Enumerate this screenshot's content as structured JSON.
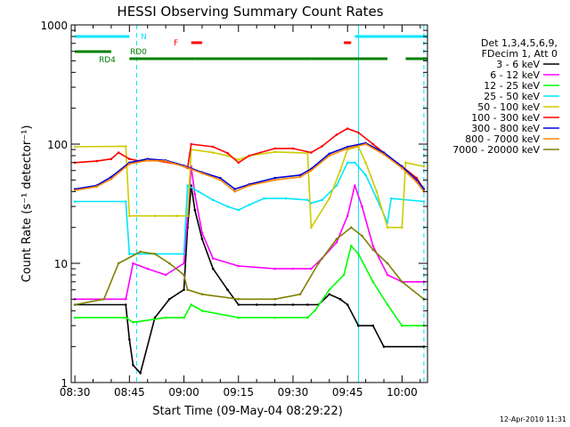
{
  "chart_data": {
    "type": "line",
    "title": "HESSI Observing Summary Count Rates",
    "xlabel": "Start Time (09-May-04 08:29:22)",
    "ylabel": "Count Rate (s⁻¹ detector⁻¹)",
    "y_scale": "log",
    "ylim": [
      1,
      1000
    ],
    "xlim": [
      "08:29",
      "10:07"
    ],
    "x_ticks": [
      "08:30",
      "08:45",
      "09:00",
      "09:15",
      "09:30",
      "09:45",
      "10:00"
    ],
    "y_ticks": [
      1,
      10,
      100,
      1000
    ],
    "y_tick_labels": [
      "1",
      "10",
      "100",
      "1000"
    ],
    "legend_header": [
      "Det 1,3,4,5,6,9,",
      "FDecim 1, Att 0"
    ],
    "legend_position": "right",
    "timestamp": "12-Apr-2010 11:31",
    "flag_bars": [
      {
        "label": "N",
        "color": "#00e5ff",
        "segments": [
          [
            "08:30",
            "08:45"
          ],
          [
            "09:47",
            "10:07"
          ]
        ]
      },
      {
        "label": "F",
        "color": "#ff0000",
        "segments": [
          [
            "09:02",
            "09:05"
          ],
          [
            "09:44",
            "09:46"
          ]
        ]
      },
      {
        "label": "RD0",
        "color": "#008000",
        "segments": [
          [
            "08:30",
            "08:40"
          ]
        ]
      },
      {
        "label": "RD4",
        "color": "#008000",
        "segments": [
          [
            "08:45",
            "09:03"
          ],
          [
            "09:03",
            "09:35"
          ],
          [
            "09:35",
            "09:56"
          ],
          [
            "10:01",
            "10:07"
          ]
        ]
      }
    ],
    "vertical_lines": [
      {
        "time": "08:47",
        "style": "dashed",
        "color": "#00e5ff"
      },
      {
        "time": "09:48",
        "style": "solid",
        "color": "#00e5ff"
      },
      {
        "time": "10:06",
        "style": "dashed",
        "color": "#00e5ff"
      }
    ],
    "series": [
      {
        "name": "3 - 6 keV",
        "color": "#000000",
        "points": [
          [
            "08:30",
            4.5
          ],
          [
            "08:44",
            4.5
          ],
          [
            "08:45",
            2.3
          ],
          [
            "08:46",
            1.4
          ],
          [
            "08:48",
            1.2
          ],
          [
            "08:52",
            3.5
          ],
          [
            "08:56",
            5
          ],
          [
            "09:00",
            6
          ],
          [
            "09:01",
            20
          ],
          [
            "09:02",
            45
          ],
          [
            "09:03",
            28
          ],
          [
            "09:05",
            16
          ],
          [
            "09:08",
            9
          ],
          [
            "09:12",
            6
          ],
          [
            "09:15",
            4.5
          ],
          [
            "09:20",
            4.5
          ],
          [
            "09:25",
            4.5
          ],
          [
            "09:30",
            4.5
          ],
          [
            "09:34",
            4.5
          ],
          [
            "09:37",
            4.5
          ],
          [
            "09:40",
            5.5
          ],
          [
            "09:43",
            5
          ],
          [
            "09:45",
            4.5
          ],
          [
            "09:48",
            3
          ],
          [
            "09:52",
            3
          ],
          [
            "09:55",
            2
          ],
          [
            "10:06",
            2
          ]
        ]
      },
      {
        "name": "6 - 12 keV",
        "color": "#ff00ff",
        "points": [
          [
            "08:30",
            5
          ],
          [
            "08:44",
            5
          ],
          [
            "08:46",
            10
          ],
          [
            "08:50",
            9
          ],
          [
            "08:55",
            8
          ],
          [
            "09:00",
            10
          ],
          [
            "09:01",
            25
          ],
          [
            "09:02",
            65
          ],
          [
            "09:03",
            38
          ],
          [
            "09:05",
            18
          ],
          [
            "09:08",
            11
          ],
          [
            "09:15",
            9.5
          ],
          [
            "09:25",
            9
          ],
          [
            "09:30",
            9
          ],
          [
            "09:35",
            9
          ],
          [
            "09:38",
            11
          ],
          [
            "09:42",
            15
          ],
          [
            "09:45",
            25
          ],
          [
            "09:47",
            45
          ],
          [
            "09:49",
            30
          ],
          [
            "09:52",
            14
          ],
          [
            "09:56",
            8
          ],
          [
            "10:00",
            7
          ],
          [
            "10:06",
            7
          ]
        ]
      },
      {
        "name": "12 - 25 keV",
        "color": "#00ff00",
        "points": [
          [
            "08:30",
            3.5
          ],
          [
            "08:44",
            3.5
          ],
          [
            "08:46",
            3.2
          ],
          [
            "08:55",
            3.5
          ],
          [
            "09:00",
            3.5
          ],
          [
            "09:02",
            4.5
          ],
          [
            "09:05",
            4
          ],
          [
            "09:15",
            3.5
          ],
          [
            "09:25",
            3.5
          ],
          [
            "09:34",
            3.5
          ],
          [
            "09:36",
            4
          ],
          [
            "09:40",
            6
          ],
          [
            "09:44",
            8
          ],
          [
            "09:46",
            14
          ],
          [
            "09:48",
            12
          ],
          [
            "09:52",
            7
          ],
          [
            "09:56",
            4.5
          ],
          [
            "10:00",
            3
          ],
          [
            "10:06",
            3
          ]
        ]
      },
      {
        "name": "25 - 50 keV",
        "color": "#00e5ff",
        "points": [
          [
            "08:30",
            33
          ],
          [
            "08:44",
            33
          ],
          [
            "08:45",
            12
          ],
          [
            "08:52",
            12
          ],
          [
            "09:00",
            12
          ],
          [
            "09:01",
            45
          ],
          [
            "09:04",
            40
          ],
          [
            "09:08",
            34
          ],
          [
            "09:12",
            30
          ],
          [
            "09:15",
            28
          ],
          [
            "09:18",
            31
          ],
          [
            "09:22",
            35
          ],
          [
            "09:28",
            35
          ],
          [
            "09:34",
            34
          ],
          [
            "09:35",
            32
          ],
          [
            "09:38",
            34
          ],
          [
            "09:42",
            45
          ],
          [
            "09:45",
            70
          ],
          [
            "09:47",
            70
          ],
          [
            "09:50",
            55
          ],
          [
            "09:53",
            35
          ],
          [
            "09:56",
            22
          ],
          [
            "09:57",
            35
          ],
          [
            "10:06",
            33
          ]
        ]
      },
      {
        "name": "50 - 100 keV",
        "color": "#cccc00",
        "points": [
          [
            "08:30",
            95
          ],
          [
            "08:44",
            96
          ],
          [
            "08:45",
            25
          ],
          [
            "08:52",
            25
          ],
          [
            "08:58",
            25
          ],
          [
            "09:01",
            25
          ],
          [
            "09:02",
            90
          ],
          [
            "09:08",
            85
          ],
          [
            "09:12",
            80
          ],
          [
            "09:15",
            74
          ],
          [
            "09:18",
            80
          ],
          [
            "09:25",
            86
          ],
          [
            "09:34",
            84
          ],
          [
            "09:35",
            20
          ],
          [
            "09:40",
            35
          ],
          [
            "09:43",
            60
          ],
          [
            "09:45",
            90
          ],
          [
            "09:48",
            95
          ],
          [
            "09:50",
            70
          ],
          [
            "09:53",
            40
          ],
          [
            "09:56",
            20
          ],
          [
            "10:00",
            20
          ],
          [
            "10:01",
            70
          ],
          [
            "10:06",
            65
          ]
        ]
      },
      {
        "name": "100 - 300 keV",
        "color": "#ff0000",
        "points": [
          [
            "08:30",
            70
          ],
          [
            "08:36",
            72
          ],
          [
            "08:40",
            75
          ],
          [
            "08:42",
            85
          ],
          [
            "08:45",
            75
          ],
          [
            "08:48",
            72
          ],
          [
            "08:52",
            73
          ],
          [
            "08:58",
            68
          ],
          [
            "09:01",
            63
          ],
          [
            "09:02",
            100
          ],
          [
            "09:08",
            95
          ],
          [
            "09:12",
            84
          ],
          [
            "09:15",
            70
          ],
          [
            "09:18",
            80
          ],
          [
            "09:25",
            92
          ],
          [
            "09:30",
            92
          ],
          [
            "09:35",
            85
          ],
          [
            "09:38",
            96
          ],
          [
            "09:42",
            120
          ],
          [
            "09:45",
            135
          ],
          [
            "09:48",
            125
          ],
          [
            "09:52",
            100
          ],
          [
            "09:56",
            80
          ],
          [
            "10:00",
            65
          ],
          [
            "10:04",
            52
          ],
          [
            "10:06",
            42
          ]
        ]
      },
      {
        "name": "300 - 800 keV",
        "color": "#0000dd",
        "points": [
          [
            "08:30",
            42
          ],
          [
            "08:36",
            45
          ],
          [
            "08:40",
            53
          ],
          [
            "08:45",
            70
          ],
          [
            "08:50",
            75
          ],
          [
            "08:55",
            73
          ],
          [
            "09:00",
            66
          ],
          [
            "09:05",
            58
          ],
          [
            "09:10",
            52
          ],
          [
            "09:14",
            42
          ],
          [
            "09:18",
            46
          ],
          [
            "09:25",
            52
          ],
          [
            "09:32",
            55
          ],
          [
            "09:35",
            62
          ],
          [
            "09:40",
            83
          ],
          [
            "09:45",
            95
          ],
          [
            "09:50",
            102
          ],
          [
            "09:55",
            85
          ],
          [
            "10:00",
            65
          ],
          [
            "10:04",
            50
          ],
          [
            "10:06",
            42
          ]
        ]
      },
      {
        "name": "800 - 7000 keV",
        "color": "#ff8800",
        "points": [
          [
            "08:30",
            41
          ],
          [
            "08:36",
            44
          ],
          [
            "08:40",
            51
          ],
          [
            "08:45",
            68
          ],
          [
            "08:50",
            73
          ],
          [
            "08:55",
            72
          ],
          [
            "09:00",
            65
          ],
          [
            "09:05",
            57
          ],
          [
            "09:10",
            50
          ],
          [
            "09:14",
            40
          ],
          [
            "09:18",
            45
          ],
          [
            "09:25",
            50
          ],
          [
            "09:32",
            53
          ],
          [
            "09:35",
            60
          ],
          [
            "09:40",
            80
          ],
          [
            "09:45",
            92
          ],
          [
            "09:50",
            100
          ],
          [
            "09:55",
            82
          ],
          [
            "10:00",
            63
          ],
          [
            "10:04",
            48
          ],
          [
            "10:06",
            40
          ]
        ]
      },
      {
        "name": "7000 - 20000 keV",
        "color": "#808000",
        "points": [
          [
            "08:30",
            4.5
          ],
          [
            "08:38",
            5
          ],
          [
            "08:42",
            10
          ],
          [
            "08:48",
            12.5
          ],
          [
            "08:52",
            12
          ],
          [
            "08:56",
            10
          ],
          [
            "09:00",
            8
          ],
          [
            "09:01",
            6
          ],
          [
            "09:05",
            5.5
          ],
          [
            "09:15",
            5
          ],
          [
            "09:25",
            5
          ],
          [
            "09:32",
            5.5
          ],
          [
            "09:37",
            10
          ],
          [
            "09:42",
            16
          ],
          [
            "09:46",
            20
          ],
          [
            "09:49",
            17
          ],
          [
            "09:52",
            13
          ],
          [
            "09:56",
            10
          ],
          [
            "10:00",
            7
          ],
          [
            "10:06",
            5
          ]
        ]
      }
    ]
  }
}
